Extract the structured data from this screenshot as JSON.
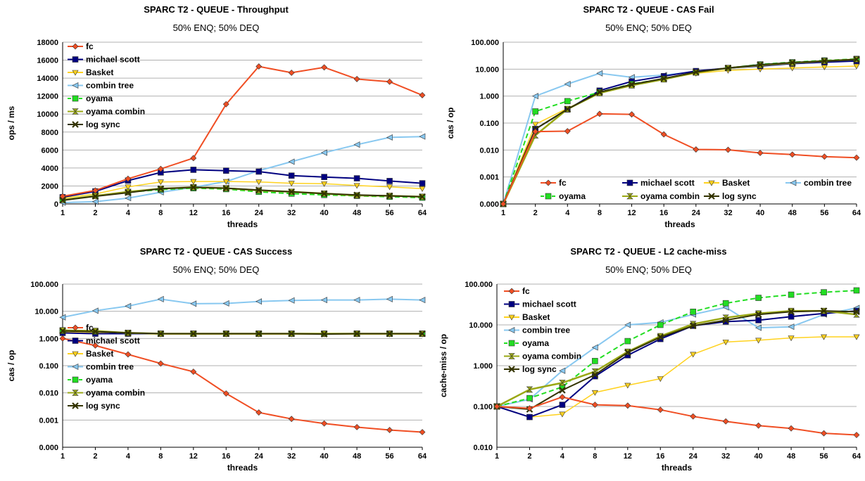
{
  "colors": {
    "fc": "#f04e23",
    "michael scott": "#000080",
    "Basket": "#ffd21f",
    "combin tree": "#88c8f0",
    "oyama": "#22dd22",
    "oyama combin": "#9aa814",
    "log sync": "#333300"
  },
  "chart_data": [
    {
      "type": "line",
      "title": "SPARC T2 - QUEUE - Throughput",
      "subtitle": "50% ENQ; 50% DEQ",
      "xlabel": "threads",
      "ylabel": "ops / ms",
      "categories": [
        "1",
        "2",
        "4",
        "8",
        "12",
        "16",
        "24",
        "32",
        "40",
        "48",
        "56",
        "64"
      ],
      "y_scale": "linear",
      "ylim": [
        0,
        18000
      ],
      "yticks": [
        0,
        2000,
        4000,
        6000,
        8000,
        10000,
        12000,
        14000,
        16000,
        18000
      ],
      "ytick_labels": [
        "0",
        "2000",
        "4000",
        "6000",
        "8000",
        "10000",
        "12000",
        "14000",
        "16000",
        "18000"
      ],
      "legend_position": "top-left",
      "legend_columns": 1,
      "series": [
        {
          "name": "fc",
          "values": [
            850,
            1500,
            2800,
            3900,
            5100,
            11100,
            15300,
            14600,
            15200,
            13900,
            13600,
            12100
          ]
        },
        {
          "name": "michael scott",
          "values": [
            750,
            1400,
            2600,
            3500,
            3800,
            3700,
            3600,
            3150,
            3000,
            2850,
            2550,
            2300
          ]
        },
        {
          "name": "Basket",
          "values": [
            650,
            1100,
            1900,
            2450,
            2500,
            2500,
            2450,
            2300,
            2250,
            2050,
            1900,
            1700
          ]
        },
        {
          "name": "combin tree",
          "values": [
            150,
            250,
            650,
            1300,
            1850,
            2500,
            3700,
            4700,
            5700,
            6600,
            7400,
            7500
          ]
        },
        {
          "name": "oyama",
          "values": [
            450,
            900,
            1300,
            1600,
            1750,
            1650,
            1350,
            1150,
            1000,
            900,
            800,
            700
          ]
        },
        {
          "name": "oyama combin",
          "values": [
            450,
            900,
            1350,
            1700,
            1850,
            1750,
            1500,
            1350,
            1150,
            950,
            900,
            800
          ]
        },
        {
          "name": "log sync",
          "values": [
            400,
            850,
            1250,
            1700,
            1850,
            1750,
            1550,
            1350,
            1150,
            1000,
            900,
            800
          ]
        }
      ]
    },
    {
      "type": "line",
      "title": "SPARC T2 - QUEUE - CAS Fail",
      "subtitle": "50% ENQ; 50% DEQ",
      "xlabel": "threads",
      "ylabel": "cas / op",
      "categories": [
        "1",
        "2",
        "4",
        "8",
        "12",
        "16",
        "24",
        "32",
        "40",
        "48",
        "56",
        "64"
      ],
      "y_scale": "log",
      "ylim": [
        0.0001,
        100
      ],
      "yticks": [
        0.0001,
        0.001,
        0.01,
        0.1,
        1,
        10,
        100
      ],
      "ytick_labels": [
        "0.000",
        "0.001",
        "0.010",
        "0.100",
        "1.000",
        "10.000",
        "100.000"
      ],
      "legend_position": "bottom-center",
      "legend_columns": 4,
      "series": [
        {
          "name": "fc",
          "values": [
            0.0001,
            0.048,
            0.05,
            0.22,
            0.21,
            0.038,
            0.0105,
            0.0102,
            0.0078,
            0.0068,
            0.0057,
            0.0052
          ]
        },
        {
          "name": "michael scott",
          "values": [
            0.0001,
            0.06,
            0.32,
            1.6,
            3.5,
            5.5,
            8.5,
            11,
            13,
            16,
            18,
            20
          ]
        },
        {
          "name": "Basket",
          "values": [
            0.0001,
            0.09,
            0.35,
            1.3,
            2.6,
            4.3,
            7,
            9,
            10,
            11,
            12,
            13
          ]
        },
        {
          "name": "combin tree",
          "values": [
            0.0001,
            1.0,
            2.8,
            7,
            5,
            6,
            8,
            11,
            15,
            17,
            19,
            21
          ]
        },
        {
          "name": "oyama",
          "values": [
            0.0001,
            0.27,
            0.65,
            1.4,
            2.8,
            4.4,
            7.5,
            11,
            15,
            18,
            21,
            24
          ]
        },
        {
          "name": "oyama combin",
          "values": [
            0.0001,
            0.035,
            0.33,
            1.3,
            2.5,
            4.2,
            7.5,
            11,
            14,
            17,
            20,
            23
          ]
        },
        {
          "name": "log sync",
          "values": [
            0.0001,
            0.06,
            0.33,
            1.4,
            2.7,
            4.5,
            7.8,
            11,
            14.5,
            17.5,
            20,
            23
          ]
        }
      ]
    },
    {
      "type": "line",
      "title": "SPARC T2 - QUEUE - CAS Success",
      "subtitle": "50% ENQ; 50% DEQ",
      "xlabel": "threads",
      "ylabel": "cas / op",
      "categories": [
        "1",
        "2",
        "4",
        "8",
        "12",
        "16",
        "24",
        "32",
        "40",
        "48",
        "56",
        "64"
      ],
      "y_scale": "log",
      "ylim": [
        0.0001,
        100
      ],
      "yticks": [
        0.0001,
        0.001,
        0.01,
        0.1,
        1,
        10,
        100
      ],
      "ytick_labels": [
        "0.000",
        "0.001",
        "0.010",
        "0.100",
        "1.000",
        "10.000",
        "100.000"
      ],
      "legend_position": "bottom-left",
      "legend_columns": 1,
      "series": [
        {
          "name": "fc",
          "values": [
            1.0,
            0.55,
            0.26,
            0.12,
            0.06,
            0.0095,
            0.0019,
            0.0011,
            0.00075,
            0.00055,
            0.00043,
            0.00036
          ]
        },
        {
          "name": "michael scott",
          "values": [
            1.6,
            1.5,
            1.5,
            1.5,
            1.5,
            1.5,
            1.5,
            1.5,
            1.5,
            1.5,
            1.5,
            1.5
          ]
        },
        {
          "name": "Basket",
          "values": [
            1.7,
            1.6,
            1.5,
            1.45,
            1.45,
            1.45,
            1.45,
            1.45,
            1.45,
            1.45,
            1.45,
            1.45
          ]
        },
        {
          "name": "combin tree",
          "values": [
            6,
            10.5,
            15.5,
            28,
            19,
            19.5,
            23,
            25,
            26,
            26,
            28,
            26
          ]
        },
        {
          "name": "oyama",
          "values": [
            1.9,
            1.8,
            1.6,
            1.5,
            1.5,
            1.5,
            1.5,
            1.5,
            1.5,
            1.5,
            1.5,
            1.5
          ]
        },
        {
          "name": "oyama combin",
          "values": [
            2.0,
            1.9,
            1.6,
            1.5,
            1.5,
            1.5,
            1.5,
            1.5,
            1.5,
            1.5,
            1.5,
            1.5
          ]
        },
        {
          "name": "log sync",
          "values": [
            1.9,
            1.8,
            1.6,
            1.5,
            1.5,
            1.5,
            1.5,
            1.5,
            1.45,
            1.5,
            1.5,
            1.5
          ]
        }
      ]
    },
    {
      "type": "line",
      "title": "SPARC T2 - QUEUE - L2 cache-miss",
      "subtitle": "50% ENQ; 50% DEQ",
      "xlabel": "threads",
      "ylabel": "cache-miss / op",
      "categories": [
        "1",
        "2",
        "4",
        "8",
        "12",
        "16",
        "24",
        "32",
        "40",
        "48",
        "56",
        "64"
      ],
      "y_scale": "log",
      "ylim": [
        0.01,
        100
      ],
      "yticks": [
        0.01,
        0.1,
        1,
        10,
        100
      ],
      "ytick_labels": [
        "0.010",
        "0.100",
        "1.000",
        "10.000",
        "100.000"
      ],
      "legend_position": "top-left",
      "legend_columns": 1,
      "series": [
        {
          "name": "fc",
          "values": [
            0.1,
            0.09,
            0.17,
            0.11,
            0.105,
            0.083,
            0.057,
            0.043,
            0.034,
            0.029,
            0.022,
            0.02
          ]
        },
        {
          "name": "michael scott",
          "values": [
            0.1,
            0.055,
            0.11,
            0.55,
            1.8,
            4.5,
            9.5,
            12,
            13,
            16,
            19,
            22
          ]
        },
        {
          "name": "Basket",
          "values": [
            0.1,
            0.055,
            0.065,
            0.22,
            0.33,
            0.48,
            1.9,
            3.8,
            4.2,
            4.8,
            5.1,
            5.1
          ]
        },
        {
          "name": "combin tree",
          "values": [
            0.1,
            0.15,
            0.75,
            2.8,
            10,
            11.5,
            18,
            27,
            8.5,
            9,
            18,
            26
          ]
        },
        {
          "name": "oyama",
          "values": [
            0.1,
            0.16,
            0.3,
            1.3,
            4,
            10,
            21,
            34,
            46,
            55,
            63,
            70
          ]
        },
        {
          "name": "oyama combin",
          "values": [
            0.1,
            0.26,
            0.38,
            0.72,
            2.2,
            5.3,
            10.5,
            15,
            19,
            22,
            22,
            18
          ]
        },
        {
          "name": "log sync",
          "values": [
            0.1,
            0.085,
            0.25,
            0.6,
            2.1,
            5,
            9.5,
            13,
            18,
            21,
            22,
            21
          ]
        }
      ]
    }
  ]
}
